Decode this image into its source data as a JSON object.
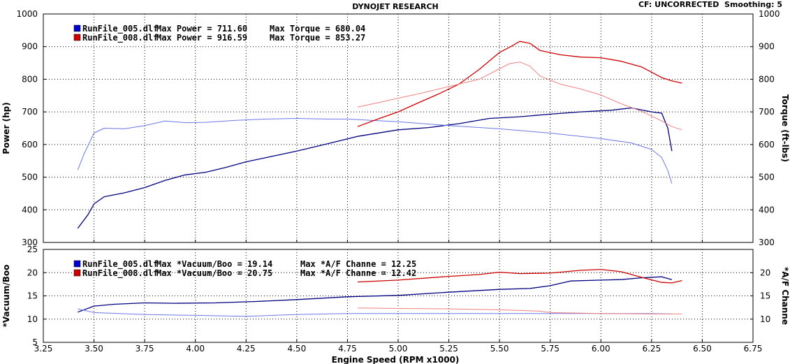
{
  "header": {
    "title": "DYNOJET RESEARCH",
    "cf_text": "CF: UNCORRECTED  Smoothing: 5"
  },
  "chart_data": [
    {
      "type": "line",
      "xlabel": "Engine Speed (RPM x1000)",
      "ylabel": "Power (hp)",
      "ylabel_right": "Torque (ft-lbs)",
      "xlim": [
        3.25,
        6.75
      ],
      "ylim": [
        300,
        1000
      ],
      "ylim_right": [
        300,
        1000
      ],
      "xticks": [
        "3.25",
        "3.50",
        "3.75",
        "4.00",
        "4.25",
        "4.50",
        "4.75",
        "5.00",
        "5.25",
        "5.50",
        "5.75",
        "6.00",
        "6.25",
        "6.50",
        "6.75"
      ],
      "yticks": [
        "1000",
        "900",
        "800",
        "700",
        "600",
        "500",
        "400",
        "300"
      ],
      "grid": true,
      "legend": [
        {
          "file": "RunFile_005.dlf",
          "text1": "Max Power = 711.60",
          "text2": "Max Torque = 680.04",
          "color": "#0000cc"
        },
        {
          "file": "RunFile_008.dlf",
          "text1": "Max Power = 916.59",
          "text2": "Max Torque = 853.27",
          "color": "#cc0000"
        }
      ],
      "series": [
        {
          "color": "#000080",
          "style": "solid",
          "x": [
            3.42,
            3.47,
            3.5,
            3.55,
            3.65,
            3.75,
            3.85,
            3.95,
            4.05,
            4.15,
            4.25,
            4.35,
            4.5,
            4.65,
            4.8,
            5.0,
            5.15,
            5.3,
            5.45,
            5.6,
            5.75,
            5.9,
            6.05,
            6.15,
            6.25,
            6.3,
            6.33,
            6.35
          ],
          "y": [
            343,
            385,
            418,
            440,
            452,
            468,
            490,
            507,
            515,
            530,
            547,
            560,
            580,
            602,
            625,
            645,
            652,
            664,
            680,
            685,
            693,
            700,
            705,
            712,
            700,
            696,
            650,
            580
          ]
        },
        {
          "color": "#6b78e6",
          "style": "thin",
          "x": [
            3.42,
            3.45,
            3.5,
            3.55,
            3.65,
            3.75,
            3.85,
            3.95,
            4.05,
            4.2,
            4.35,
            4.5,
            4.65,
            4.75,
            5.0,
            5.25,
            5.5,
            5.75,
            6.0,
            6.15,
            6.25,
            6.3,
            6.33,
            6.35
          ],
          "y": [
            522,
            570,
            635,
            650,
            648,
            658,
            672,
            667,
            668,
            674,
            678,
            680,
            678,
            678,
            670,
            658,
            648,
            635,
            618,
            605,
            585,
            560,
            520,
            480
          ]
        },
        {
          "color": "#cc0000",
          "style": "solid",
          "x": [
            4.8,
            4.9,
            5.0,
            5.1,
            5.2,
            5.3,
            5.4,
            5.5,
            5.55,
            5.6,
            5.65,
            5.7,
            5.8,
            5.9,
            6.0,
            6.1,
            6.2,
            6.3,
            6.35,
            6.4
          ],
          "y": [
            655,
            678,
            700,
            728,
            755,
            785,
            830,
            882,
            898,
            916,
            910,
            888,
            875,
            868,
            866,
            855,
            838,
            805,
            795,
            788
          ]
        },
        {
          "color": "#f08080",
          "style": "thin",
          "x": [
            4.8,
            4.9,
            5.0,
            5.1,
            5.2,
            5.3,
            5.4,
            5.5,
            5.55,
            5.6,
            5.65,
            5.7,
            5.8,
            5.9,
            6.0,
            6.1,
            6.2,
            6.3,
            6.35,
            6.4
          ],
          "y": [
            715,
            728,
            742,
            755,
            770,
            785,
            800,
            832,
            848,
            853,
            840,
            810,
            785,
            770,
            752,
            725,
            702,
            672,
            655,
            645
          ]
        }
      ]
    },
    {
      "type": "line",
      "xlabel": "Engine Speed (RPM x1000)",
      "ylabel": "*Vacuum/Boo",
      "ylabel_right": "*A/F Channe",
      "xlim": [
        3.25,
        6.75
      ],
      "ylim": [
        5,
        25
      ],
      "ylim_right": [
        5,
        25
      ],
      "yticks": [
        "25",
        "20",
        "15",
        "10",
        "5"
      ],
      "yticks_right": [
        "20",
        "15",
        "10"
      ],
      "grid": true,
      "legend": [
        {
          "file": "RunFile_005.dlf",
          "text1": "Max *Vacuum/Boo = 19.14",
          "text2": "Max *A/F Channe = 12.25",
          "color": "#0000cc"
        },
        {
          "file": "RunFile_008.dlf",
          "text1": "Max *Vacuum/Boo = 20.75",
          "text2": "Max *A/F Channe = 12.42",
          "color": "#cc0000"
        }
      ],
      "series": [
        {
          "color": "#000080",
          "style": "solid",
          "x": [
            3.42,
            3.5,
            3.6,
            3.75,
            3.9,
            4.1,
            4.3,
            4.5,
            4.75,
            5.0,
            5.25,
            5.5,
            5.65,
            5.75,
            5.85,
            6.0,
            6.1,
            6.2,
            6.3,
            6.35
          ],
          "y": [
            11.5,
            12.8,
            13.2,
            13.5,
            13.4,
            13.5,
            13.8,
            14.2,
            14.8,
            15.1,
            15.8,
            16.4,
            16.6,
            17.2,
            18.2,
            18.4,
            18.5,
            18.9,
            19.1,
            18.5
          ]
        },
        {
          "color": "#6b78e6",
          "style": "thin",
          "x": [
            3.42,
            3.5,
            3.75,
            4.0,
            4.25,
            4.5,
            4.75,
            5.0,
            5.25,
            5.5,
            5.75,
            6.0,
            6.25,
            6.35
          ],
          "y": [
            12.2,
            11.4,
            11.0,
            10.8,
            10.6,
            11.0,
            11.2,
            11.2,
            11.2,
            11.2,
            11.2,
            11.2,
            11.2,
            11.1
          ]
        },
        {
          "color": "#cc0000",
          "style": "solid",
          "x": [
            4.8,
            5.0,
            5.25,
            5.4,
            5.5,
            5.6,
            5.75,
            5.9,
            6.0,
            6.1,
            6.2,
            6.3,
            6.35,
            6.4
          ],
          "y": [
            18.0,
            18.4,
            19.2,
            19.6,
            20.1,
            19.8,
            19.9,
            20.5,
            20.7,
            20.2,
            19.0,
            17.9,
            17.8,
            18.3
          ]
        },
        {
          "color": "#f08080",
          "style": "thin",
          "x": [
            4.8,
            5.0,
            5.25,
            5.5,
            5.7,
            5.75,
            6.0,
            6.25,
            6.4
          ],
          "y": [
            12.4,
            12.3,
            12.2,
            12.0,
            11.7,
            11.4,
            11.2,
            11.1,
            11.1
          ]
        }
      ]
    }
  ]
}
